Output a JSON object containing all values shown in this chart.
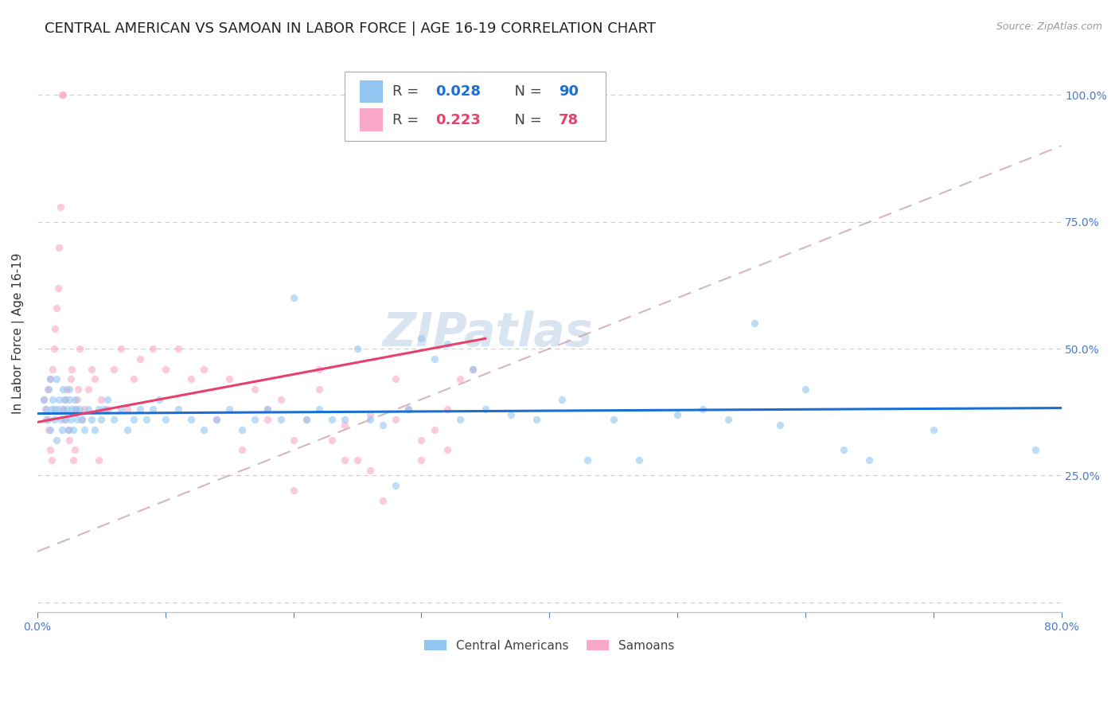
{
  "title": "CENTRAL AMERICAN VS SAMOAN IN LABOR FORCE | AGE 16-19 CORRELATION CHART",
  "source": "Source: ZipAtlas.com",
  "ylabel": "In Labor Force | Age 16-19",
  "xlim": [
    0.0,
    0.8
  ],
  "ylim": [
    -0.02,
    1.08
  ],
  "xticks": [
    0.0,
    0.1,
    0.2,
    0.3,
    0.4,
    0.5,
    0.6,
    0.7,
    0.8
  ],
  "xticklabels": [
    "0.0%",
    "",
    "",
    "",
    "",
    "",
    "",
    "",
    "80.0%"
  ],
  "ytick_positions": [
    0.0,
    0.25,
    0.5,
    0.75,
    1.0
  ],
  "ytick_labels_right": [
    "",
    "25.0%",
    "50.0%",
    "75.0%",
    "100.0%"
  ],
  "blue_color": "#92C5F0",
  "pink_color": "#F9A8C9",
  "blue_line_color": "#1A6FD4",
  "pink_line_color": "#E8406A",
  "dashed_line_color": "#C8A0A8",
  "watermark": "ZIPatlas",
  "watermark_color": "#D8E4F0",
  "blue_scatter_x": [
    0.005,
    0.007,
    0.008,
    0.009,
    0.01,
    0.01,
    0.011,
    0.012,
    0.013,
    0.014,
    0.015,
    0.015,
    0.016,
    0.017,
    0.018,
    0.019,
    0.02,
    0.02,
    0.021,
    0.022,
    0.023,
    0.024,
    0.025,
    0.025,
    0.026,
    0.027,
    0.028,
    0.029,
    0.03,
    0.031,
    0.033,
    0.035,
    0.037,
    0.04,
    0.042,
    0.045,
    0.048,
    0.05,
    0.052,
    0.055,
    0.06,
    0.065,
    0.07,
    0.075,
    0.08,
    0.085,
    0.09,
    0.095,
    0.1,
    0.11,
    0.12,
    0.13,
    0.14,
    0.15,
    0.16,
    0.17,
    0.18,
    0.19,
    0.2,
    0.21,
    0.22,
    0.23,
    0.24,
    0.25,
    0.26,
    0.27,
    0.28,
    0.29,
    0.3,
    0.31,
    0.32,
    0.33,
    0.34,
    0.35,
    0.37,
    0.39,
    0.41,
    0.43,
    0.45,
    0.47,
    0.5,
    0.52,
    0.54,
    0.56,
    0.58,
    0.6,
    0.63,
    0.65,
    0.7,
    0.78
  ],
  "blue_scatter_y": [
    0.4,
    0.38,
    0.36,
    0.42,
    0.34,
    0.44,
    0.38,
    0.4,
    0.36,
    0.38,
    0.32,
    0.44,
    0.38,
    0.4,
    0.36,
    0.34,
    0.42,
    0.38,
    0.4,
    0.36,
    0.38,
    0.34,
    0.4,
    0.42,
    0.36,
    0.38,
    0.34,
    0.4,
    0.38,
    0.36,
    0.38,
    0.36,
    0.34,
    0.38,
    0.36,
    0.34,
    0.38,
    0.36,
    0.38,
    0.4,
    0.36,
    0.38,
    0.34,
    0.36,
    0.38,
    0.36,
    0.38,
    0.4,
    0.36,
    0.38,
    0.36,
    0.34,
    0.36,
    0.38,
    0.34,
    0.36,
    0.38,
    0.36,
    0.6,
    0.36,
    0.38,
    0.36,
    0.36,
    0.5,
    0.36,
    0.35,
    0.23,
    0.38,
    0.52,
    0.48,
    0.51,
    0.36,
    0.46,
    0.38,
    0.37,
    0.36,
    0.4,
    0.28,
    0.36,
    0.28,
    0.37,
    0.38,
    0.36,
    0.55,
    0.35,
    0.42,
    0.3,
    0.28,
    0.34,
    0.3
  ],
  "pink_scatter_x": [
    0.005,
    0.006,
    0.007,
    0.008,
    0.009,
    0.01,
    0.01,
    0.011,
    0.012,
    0.013,
    0.014,
    0.015,
    0.016,
    0.017,
    0.018,
    0.019,
    0.02,
    0.02,
    0.021,
    0.022,
    0.023,
    0.024,
    0.025,
    0.026,
    0.027,
    0.028,
    0.029,
    0.03,
    0.031,
    0.032,
    0.033,
    0.035,
    0.037,
    0.04,
    0.042,
    0.045,
    0.048,
    0.05,
    0.055,
    0.06,
    0.065,
    0.07,
    0.075,
    0.08,
    0.09,
    0.1,
    0.11,
    0.12,
    0.13,
    0.14,
    0.15,
    0.16,
    0.17,
    0.18,
    0.19,
    0.2,
    0.21,
    0.22,
    0.23,
    0.24,
    0.25,
    0.26,
    0.27,
    0.28,
    0.29,
    0.3,
    0.31,
    0.32,
    0.33,
    0.34,
    0.18,
    0.2,
    0.22,
    0.24,
    0.26,
    0.28,
    0.3,
    0.32
  ],
  "pink_scatter_y": [
    0.4,
    0.38,
    0.36,
    0.42,
    0.34,
    0.44,
    0.3,
    0.28,
    0.46,
    0.5,
    0.54,
    0.58,
    0.62,
    0.7,
    0.78,
    1.0,
    1.0,
    0.38,
    0.36,
    0.4,
    0.42,
    0.34,
    0.32,
    0.44,
    0.46,
    0.28,
    0.3,
    0.38,
    0.4,
    0.42,
    0.5,
    0.36,
    0.38,
    0.42,
    0.46,
    0.44,
    0.28,
    0.4,
    0.38,
    0.46,
    0.5,
    0.38,
    0.44,
    0.48,
    0.5,
    0.46,
    0.5,
    0.44,
    0.46,
    0.36,
    0.44,
    0.3,
    0.42,
    0.38,
    0.4,
    0.22,
    0.36,
    0.42,
    0.32,
    0.28,
    0.28,
    0.26,
    0.2,
    0.36,
    0.38,
    0.32,
    0.34,
    0.38,
    0.44,
    0.46,
    0.36,
    0.32,
    0.46,
    0.35,
    0.37,
    0.44,
    0.28,
    0.3
  ],
  "blue_trend_x": [
    0.0,
    0.8
  ],
  "blue_trend_y": [
    0.372,
    0.383
  ],
  "pink_trend_x": [
    0.0,
    0.35
  ],
  "pink_trend_y": [
    0.355,
    0.52
  ],
  "dashed_trend_x": [
    0.0,
    0.8
  ],
  "dashed_trend_y": [
    0.1,
    0.9
  ],
  "grid_color": "#CCCCCC",
  "background_color": "#FFFFFF",
  "title_fontsize": 13,
  "axis_label_fontsize": 11,
  "tick_fontsize": 10,
  "legend_fontsize": 13,
  "watermark_fontsize": 42,
  "scatter_size": 45,
  "scatter_alpha": 0.6,
  "tick_color": "#4A7CC0",
  "title_color": "#222222",
  "source_color": "#999999"
}
